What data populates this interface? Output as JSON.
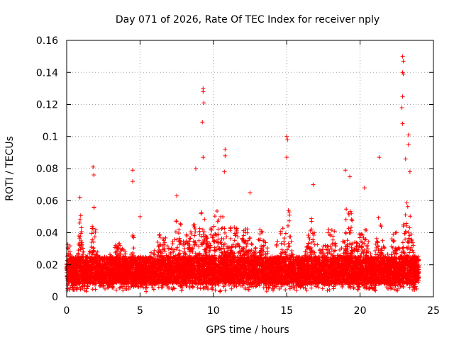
{
  "chart_data": {
    "type": "scatter",
    "title": "Day 071 of 2026, Rate Of TEC Index for receiver nply",
    "xlabel": "GPS time / hours",
    "ylabel": "ROTI / TECUs",
    "xlim": [
      0,
      25
    ],
    "ylim": [
      0,
      0.16
    ],
    "x_ticks": [
      0,
      5,
      10,
      15,
      20,
      25
    ],
    "x_tick_labels": [
      "0",
      "5",
      "10",
      "15",
      "20",
      "25"
    ],
    "y_ticks": [
      0,
      0.02,
      0.04,
      0.06,
      0.08,
      0.1,
      0.12,
      0.14,
      0.16
    ],
    "y_tick_labels": [
      "0",
      "0.02",
      "0.04",
      "0.06",
      "0.08",
      "0.1",
      "0.12",
      "0.14",
      "0.16"
    ],
    "grid": true,
    "marker": "+",
    "series": [
      {
        "name": "ROTI",
        "color": "#ff0000",
        "x_range": [
          0,
          24
        ],
        "baseline_min": 0.003,
        "baseline_typical": [
          0.008,
          0.025
        ],
        "notable_points": [
          {
            "x": 0.1,
            "y": 0.03
          },
          {
            "x": 0.9,
            "y": 0.062
          },
          {
            "x": 1.8,
            "y": 0.081
          },
          {
            "x": 1.85,
            "y": 0.076
          },
          {
            "x": 4.5,
            "y": 0.079
          },
          {
            "x": 4.5,
            "y": 0.072
          },
          {
            "x": 5.0,
            "y": 0.05
          },
          {
            "x": 7.5,
            "y": 0.063
          },
          {
            "x": 8.8,
            "y": 0.08
          },
          {
            "x": 9.3,
            "y": 0.13
          },
          {
            "x": 9.3,
            "y": 0.128
          },
          {
            "x": 9.35,
            "y": 0.121
          },
          {
            "x": 9.25,
            "y": 0.109
          },
          {
            "x": 9.3,
            "y": 0.087
          },
          {
            "x": 10.8,
            "y": 0.092
          },
          {
            "x": 10.8,
            "y": 0.088
          },
          {
            "x": 10.75,
            "y": 0.078
          },
          {
            "x": 12.5,
            "y": 0.065
          },
          {
            "x": 15.0,
            "y": 0.1
          },
          {
            "x": 15.05,
            "y": 0.098
          },
          {
            "x": 15.0,
            "y": 0.087
          },
          {
            "x": 16.8,
            "y": 0.07
          },
          {
            "x": 19.0,
            "y": 0.079
          },
          {
            "x": 19.3,
            "y": 0.075
          },
          {
            "x": 20.3,
            "y": 0.068
          },
          {
            "x": 21.3,
            "y": 0.087
          },
          {
            "x": 22.9,
            "y": 0.15
          },
          {
            "x": 22.95,
            "y": 0.147
          },
          {
            "x": 22.9,
            "y": 0.14
          },
          {
            "x": 22.95,
            "y": 0.139
          },
          {
            "x": 22.9,
            "y": 0.125
          },
          {
            "x": 22.85,
            "y": 0.118
          },
          {
            "x": 22.9,
            "y": 0.108
          },
          {
            "x": 23.3,
            "y": 0.101
          },
          {
            "x": 23.3,
            "y": 0.095
          },
          {
            "x": 23.4,
            "y": 0.078
          },
          {
            "x": 23.1,
            "y": 0.086
          }
        ]
      }
    ]
  }
}
